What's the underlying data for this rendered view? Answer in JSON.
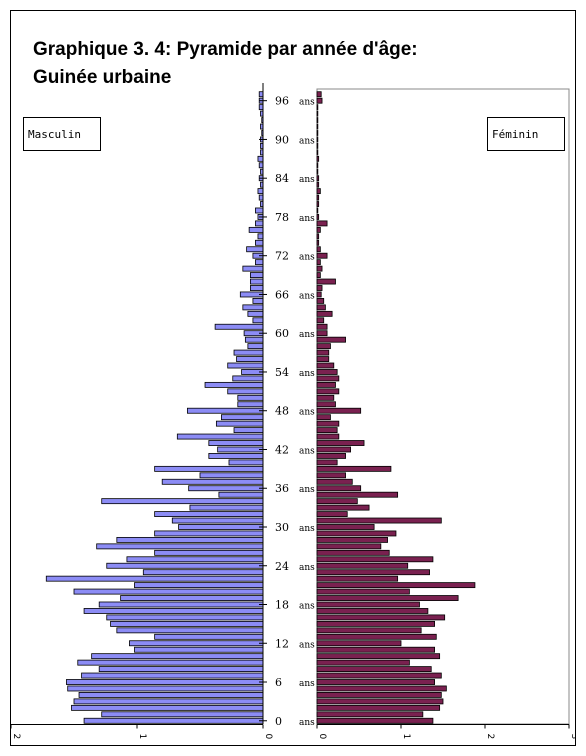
{
  "title_line1": "Graphique 3. 4: Pyramide par année d'âge:",
  "title_line2": "Guinée  urbaine",
  "legend_male": "Masculin",
  "legend_female": "Féminin",
  "colors": {
    "male": "#8c8cf5",
    "female": "#7a2150",
    "outline": "#000000"
  },
  "chart_data": {
    "type": "bar",
    "orientation": "horizontal-pyramid",
    "categories_ages": [
      0,
      1,
      2,
      3,
      4,
      5,
      6,
      7,
      8,
      9,
      10,
      11,
      12,
      13,
      14,
      15,
      16,
      17,
      18,
      19,
      20,
      21,
      22,
      23,
      24,
      25,
      26,
      27,
      28,
      29,
      30,
      31,
      32,
      33,
      34,
      35,
      36,
      37,
      38,
      39,
      40,
      41,
      42,
      43,
      44,
      45,
      46,
      47,
      48,
      49,
      50,
      51,
      52,
      53,
      54,
      55,
      56,
      57,
      58,
      59,
      60,
      61,
      62,
      63,
      64,
      65,
      66,
      67,
      68,
      69,
      70,
      71,
      72,
      73,
      74,
      75,
      76,
      77,
      78,
      79,
      80,
      81,
      82,
      83,
      84,
      85,
      86,
      87,
      88,
      89,
      90,
      91,
      92,
      93,
      94,
      95,
      96,
      97
    ],
    "age_tick_labels": [
      "0",
      "6",
      "12",
      "18",
      "24",
      "30",
      "36",
      "42",
      "48",
      "54",
      "60",
      "66",
      "72",
      "78",
      "84",
      "90",
      "96"
    ],
    "age_unit_label": "ans",
    "series": [
      {
        "name": "Masculin",
        "values": [
          1.42,
          1.28,
          1.52,
          1.5,
          1.46,
          1.55,
          1.56,
          1.44,
          1.3,
          1.47,
          1.36,
          1.02,
          1.06,
          0.86,
          1.16,
          1.21,
          1.24,
          1.42,
          1.3,
          1.13,
          1.5,
          1.02,
          1.72,
          0.95,
          1.24,
          1.08,
          0.86,
          1.32,
          1.16,
          0.86,
          0.67,
          0.72,
          0.86,
          0.58,
          1.28,
          0.35,
          0.59,
          0.8,
          0.5,
          0.86,
          0.27,
          0.43,
          0.36,
          0.43,
          0.68,
          0.23,
          0.37,
          0.33,
          0.6,
          0.2,
          0.2,
          0.28,
          0.46,
          0.24,
          0.17,
          0.28,
          0.21,
          0.23,
          0.12,
          0.14,
          0.15,
          0.38,
          0.08,
          0.12,
          0.16,
          0.08,
          0.18,
          0.1,
          0.1,
          0.1,
          0.16,
          0.06,
          0.08,
          0.13,
          0.06,
          0.04,
          0.11,
          0.06,
          0.04,
          0.06,
          0.02,
          0.03,
          0.04,
          0.02,
          0.03,
          0.02,
          0.03,
          0.04,
          0.02,
          0.02,
          0.02,
          0.01,
          0.02,
          0.01,
          0.02,
          0.03,
          0.03,
          0.03
        ]
      },
      {
        "name": "Féminin",
        "values": [
          1.38,
          1.26,
          1.46,
          1.5,
          1.48,
          1.54,
          1.4,
          1.48,
          1.36,
          1.1,
          1.46,
          1.4,
          1.0,
          1.42,
          1.24,
          1.4,
          1.52,
          1.32,
          1.22,
          1.68,
          1.1,
          1.88,
          0.96,
          1.34,
          1.08,
          1.38,
          0.86,
          0.76,
          0.84,
          0.94,
          0.68,
          1.48,
          0.36,
          0.62,
          0.48,
          0.96,
          0.52,
          0.42,
          0.34,
          0.88,
          0.24,
          0.34,
          0.4,
          0.56,
          0.26,
          0.24,
          0.26,
          0.16,
          0.52,
          0.22,
          0.2,
          0.26,
          0.22,
          0.26,
          0.24,
          0.2,
          0.14,
          0.14,
          0.16,
          0.34,
          0.12,
          0.12,
          0.08,
          0.18,
          0.1,
          0.08,
          0.05,
          0.06,
          0.22,
          0.04,
          0.06,
          0.04,
          0.12,
          0.04,
          0.02,
          0.02,
          0.04,
          0.12,
          0.02,
          0.01,
          0.02,
          0.02,
          0.04,
          0.02,
          0.02,
          0.01,
          0.01,
          0.02,
          0.01,
          0.01,
          0.01,
          0.01,
          0.01,
          0.01,
          0.01,
          0.01,
          0.06,
          0.05
        ]
      }
    ],
    "male_axis_ticks": [
      "2",
      "1",
      "0"
    ],
    "female_axis_ticks": [
      "0",
      "1",
      "2",
      "3"
    ],
    "male_range": [
      0,
      2
    ],
    "female_range": [
      0,
      3
    ]
  }
}
